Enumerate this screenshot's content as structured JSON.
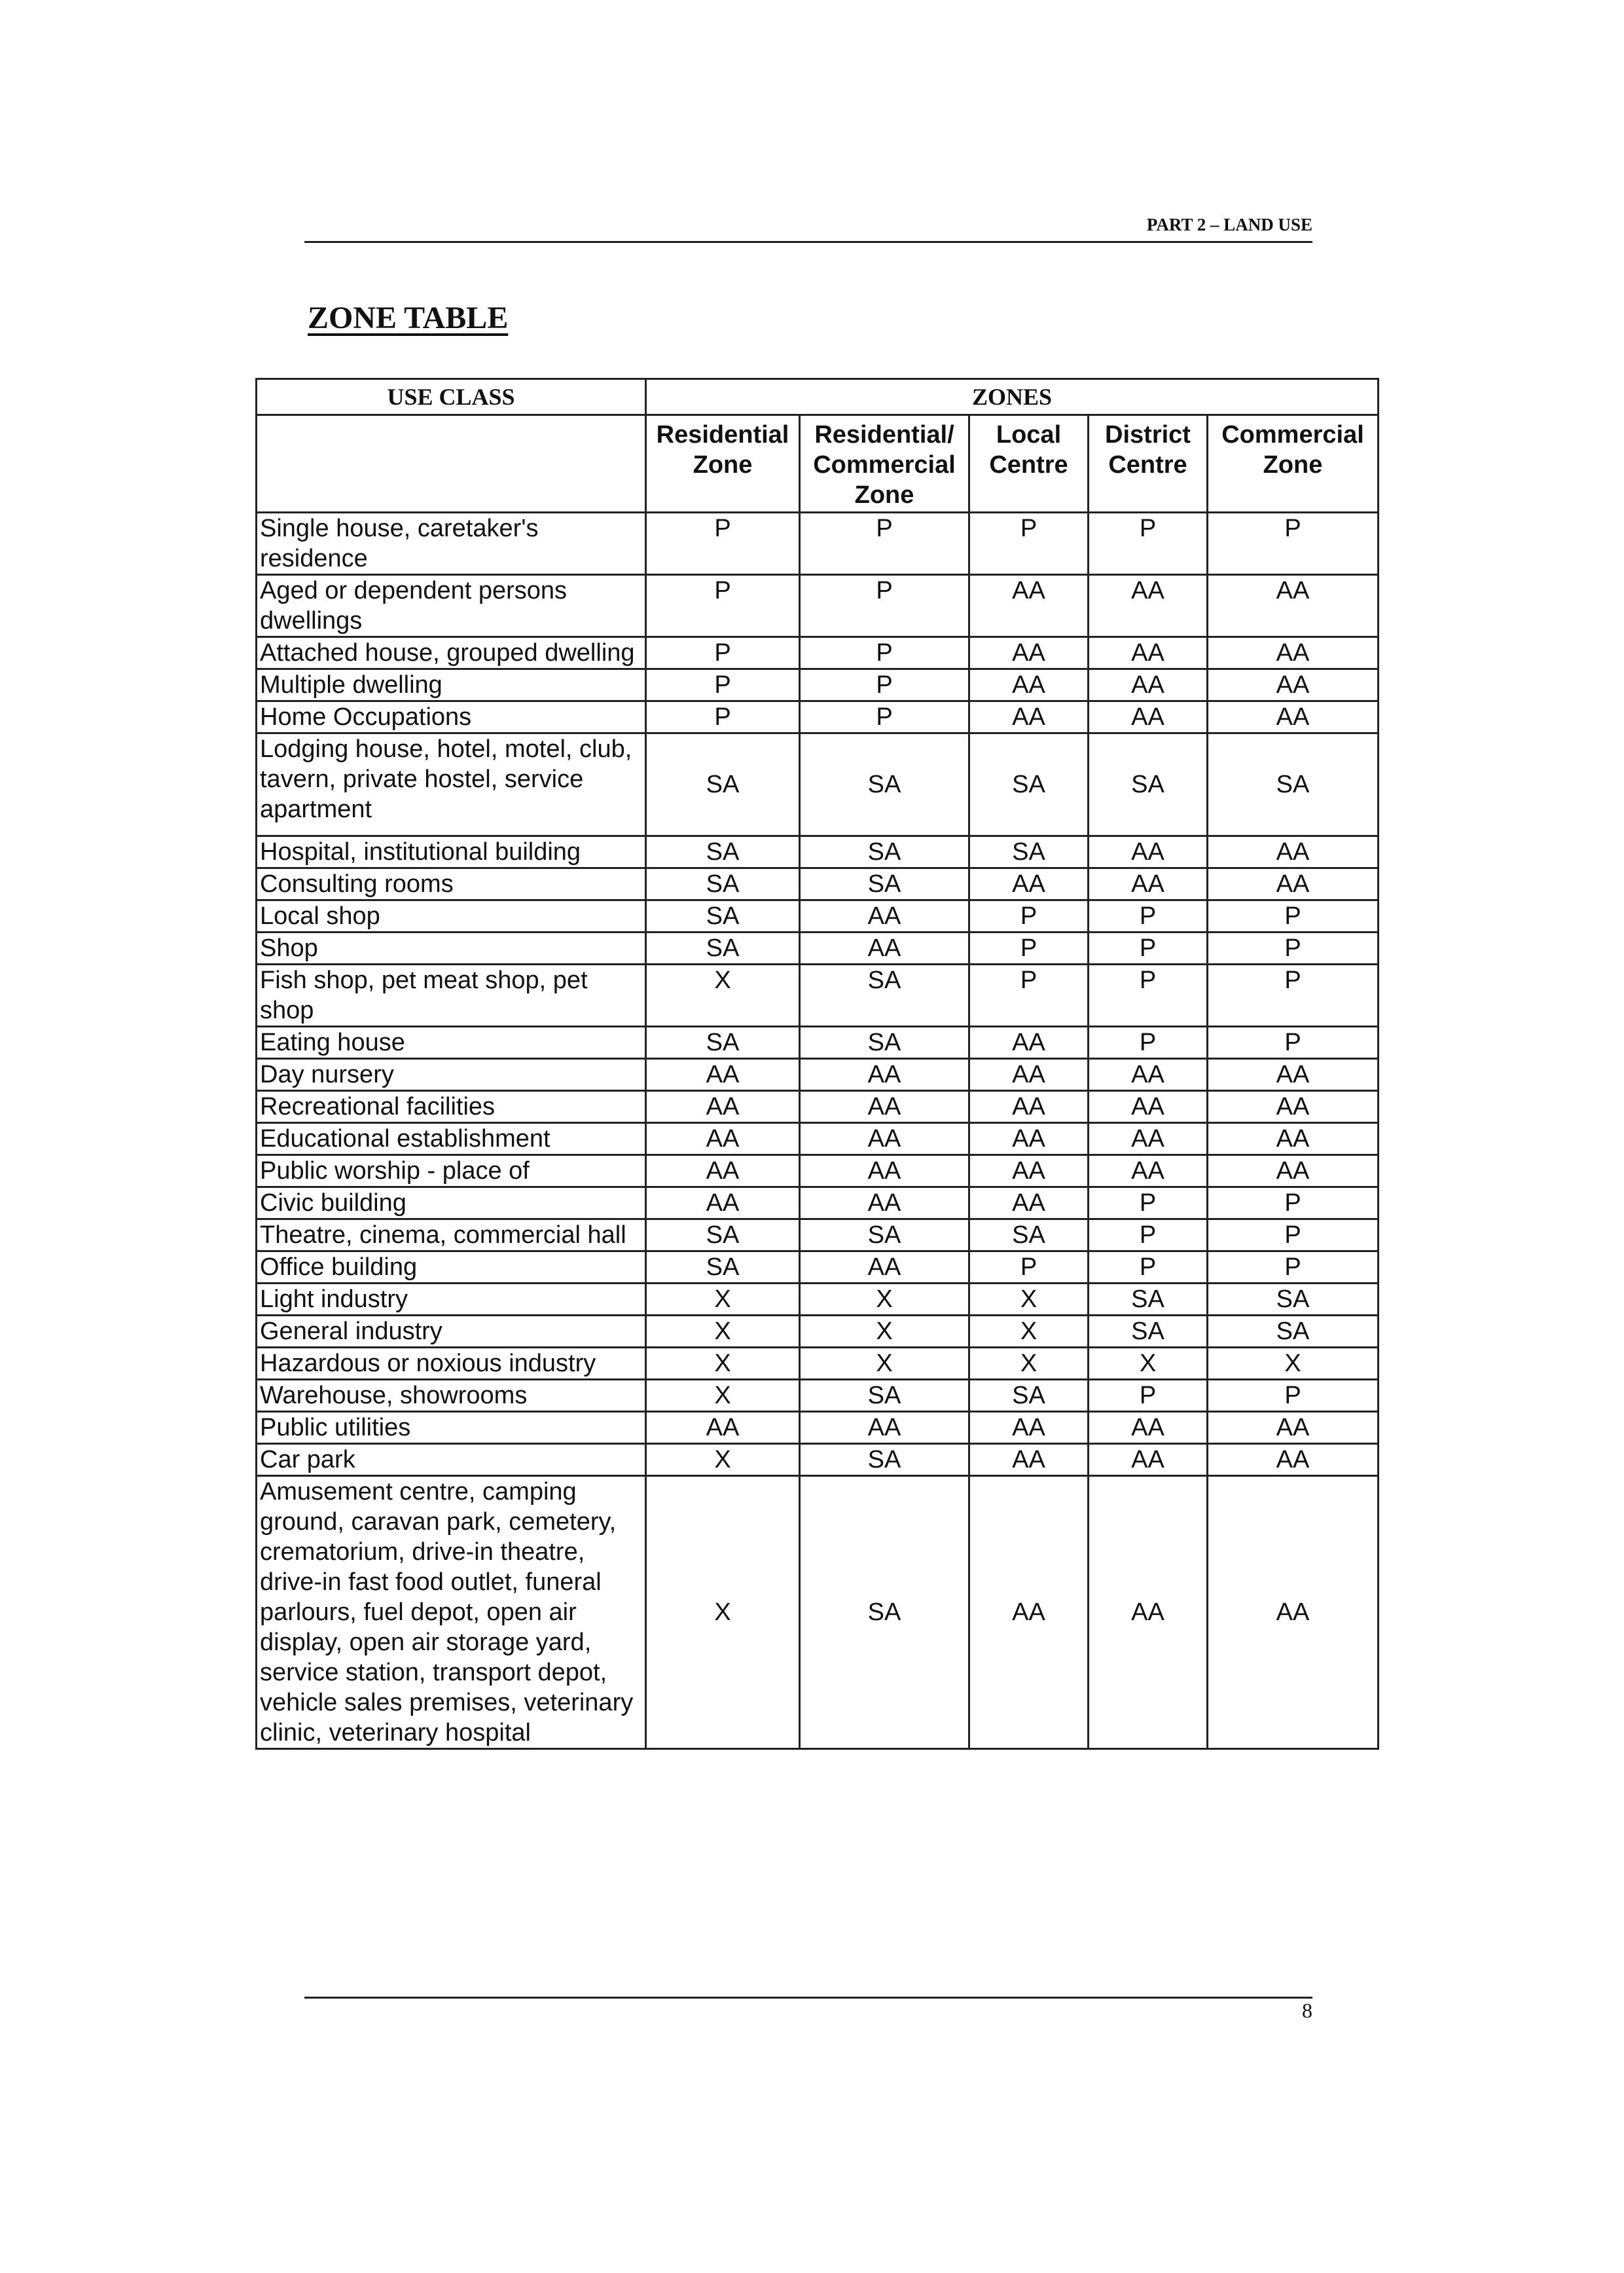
{
  "header": {
    "running_head": "PART 2 – LAND USE",
    "page_number": "8"
  },
  "title": "ZONE TABLE",
  "table": {
    "use_class_header": "USE CLASS",
    "zones_header": "ZONES",
    "zone_columns": [
      "Residential Zone",
      "Residential/ Commercial Zone",
      "Local Centre",
      "District Centre",
      "Commercial Zone"
    ],
    "rows": [
      {
        "use": "Single house, caretaker's residence",
        "values": [
          "P",
          "P",
          "P",
          "P",
          "P"
        ]
      },
      {
        "use": "Aged or dependent persons dwellings",
        "values": [
          "P",
          "P",
          "AA",
          "AA",
          "AA"
        ]
      },
      {
        "use": "Attached house, grouped dwelling",
        "values": [
          "P",
          "P",
          "AA",
          "AA",
          "AA"
        ]
      },
      {
        "use": "Multiple dwelling",
        "values": [
          "P",
          "P",
          "AA",
          "AA",
          "AA"
        ]
      },
      {
        "use": "Home Occupations",
        "values": [
          "P",
          "P",
          "AA",
          "AA",
          "AA"
        ]
      },
      {
        "use": "Lodging house, hotel, motel, club, tavern, private hostel, service apartment",
        "values": [
          "SA",
          "SA",
          "SA",
          "SA",
          "SA"
        ]
      },
      {
        "use": "Hospital, institutional building",
        "values": [
          "SA",
          "SA",
          "SA",
          "AA",
          "AA"
        ]
      },
      {
        "use": "Consulting rooms",
        "values": [
          "SA",
          "SA",
          "AA",
          "AA",
          "AA"
        ]
      },
      {
        "use": "Local shop",
        "values": [
          "SA",
          "AA",
          "P",
          "P",
          "P"
        ]
      },
      {
        "use": "Shop",
        "values": [
          "SA",
          "AA",
          "P",
          "P",
          "P"
        ]
      },
      {
        "use": "Fish shop, pet meat shop, pet shop",
        "values": [
          "X",
          "SA",
          "P",
          "P",
          "P"
        ]
      },
      {
        "use": "Eating house",
        "values": [
          "SA",
          "SA",
          "AA",
          "P",
          "P"
        ]
      },
      {
        "use": "Day nursery",
        "values": [
          "AA",
          "AA",
          "AA",
          "AA",
          "AA"
        ]
      },
      {
        "use": "Recreational facilities",
        "values": [
          "AA",
          "AA",
          "AA",
          "AA",
          "AA"
        ]
      },
      {
        "use": "Educational establishment",
        "values": [
          "AA",
          "AA",
          "AA",
          "AA",
          "AA"
        ]
      },
      {
        "use": "Public worship - place of",
        "values": [
          "AA",
          "AA",
          "AA",
          "AA",
          "AA"
        ]
      },
      {
        "use": "Civic building",
        "values": [
          "AA",
          "AA",
          "AA",
          "P",
          "P"
        ]
      },
      {
        "use": "Theatre, cinema, commercial hall",
        "values": [
          "SA",
          "SA",
          "SA",
          "P",
          "P"
        ]
      },
      {
        "use": "Office building",
        "values": [
          "SA",
          "AA",
          "P",
          "P",
          "P"
        ]
      },
      {
        "use": "Light industry",
        "values": [
          "X",
          "X",
          "X",
          "SA",
          "SA"
        ]
      },
      {
        "use": "General industry",
        "values": [
          "X",
          "X",
          "X",
          "SA",
          "SA"
        ]
      },
      {
        "use": "Hazardous or noxious industry",
        "values": [
          "X",
          "X",
          "X",
          "X",
          "X"
        ]
      },
      {
        "use": "Warehouse, showrooms",
        "values": [
          "X",
          "SA",
          "SA",
          "P",
          "P"
        ]
      },
      {
        "use": "Public utilities",
        "values": [
          "AA",
          "AA",
          "AA",
          "AA",
          "AA"
        ]
      },
      {
        "use": "Car park",
        "values": [
          "X",
          "SA",
          "AA",
          "AA",
          "AA"
        ]
      },
      {
        "use": "Amusement centre, camping ground, caravan park, cemetery, crematorium, drive-in theatre, drive-in fast food outlet, funeral parlours, fuel depot, open air display, open air storage yard, service station, transport depot, vehicle sales premises, veterinary clinic, veterinary hospital",
        "values": [
          "X",
          "SA",
          "AA",
          "AA",
          "AA"
        ]
      }
    ]
  }
}
